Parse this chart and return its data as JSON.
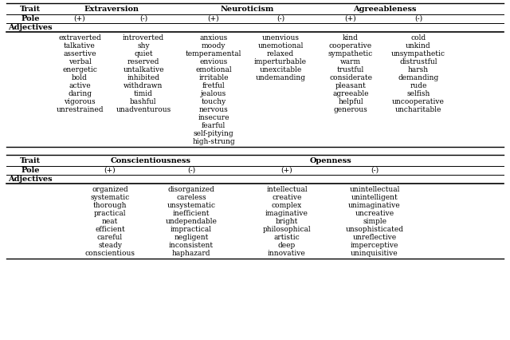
{
  "table1": {
    "columns": {
      "extraversion_pos": [
        "extraverted",
        "talkative",
        "assertive",
        "verbal",
        "energetic",
        "bold",
        "active",
        "daring",
        "vigorous",
        "unrestrained"
      ],
      "extraversion_neg": [
        "introverted",
        "shy",
        "quiet",
        "reserved",
        "untalkative",
        "inhibited",
        "withdrawn",
        "timid",
        "bashful",
        "unadventurous"
      ],
      "neuroticism_pos": [
        "anxious",
        "moody",
        "temperamental",
        "envious",
        "emotional",
        "irritable",
        "fretful",
        "jealous",
        "touchy",
        "nervous",
        "insecure",
        "fearful",
        "self-pitying",
        "high-strung"
      ],
      "neuroticism_neg": [
        "unenvious",
        "unemotional",
        "relaxed",
        "imperturbable",
        "unexcitable",
        "undemanding"
      ],
      "agreeableness_pos": [
        "kind",
        "cooperative",
        "sympathetic",
        "warm",
        "trustful",
        "considerate",
        "pleasant",
        "agreeable",
        "helpful",
        "generous"
      ],
      "agreeableness_neg": [
        "cold",
        "unkind",
        "unsympathetic",
        "distrustful",
        "harsh",
        "demanding",
        "rude",
        "selfish",
        "uncooperative",
        "uncharitable"
      ]
    }
  },
  "table2": {
    "columns": {
      "conscientiousness_pos": [
        "organized",
        "systematic",
        "thorough",
        "practical",
        "neat",
        "efficient",
        "careful",
        "steady",
        "conscientious"
      ],
      "conscientiousness_neg": [
        "disorganized",
        "careless",
        "unsystematic",
        "inefficient",
        "undependable",
        "impractical",
        "negligent",
        "inconsistent",
        "haphazard"
      ],
      "openness_pos": [
        "intellectual",
        "creative",
        "complex",
        "imaginative",
        "bright",
        "philosophical",
        "artistic",
        "deep",
        "innovative"
      ],
      "openness_neg": [
        "unintellectual",
        "unintelligent",
        "unimaginative",
        "uncreative",
        "simple",
        "unsophisticated",
        "unreflective",
        "imperceptive",
        "uninquisitive"
      ]
    }
  },
  "font_size": 6.5,
  "header_font_size": 7.0,
  "bg_color": "#ffffff"
}
